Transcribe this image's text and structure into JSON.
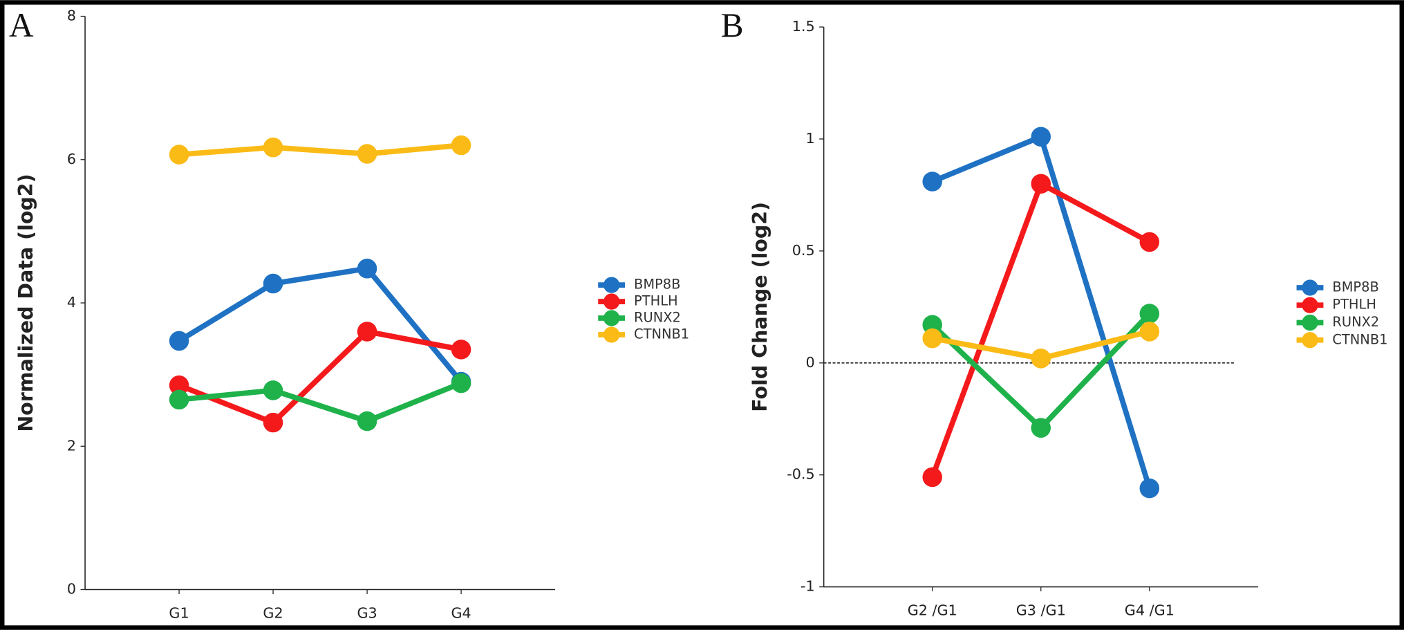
{
  "chart_data": [
    {
      "type": "line",
      "panel_label": "A",
      "y_label": "Normalized Data (log2)",
      "categories": [
        "G1",
        "G2",
        "G3",
        "G4"
      ],
      "ylim": [
        0,
        8
      ],
      "yticks": [
        0,
        2,
        4,
        6,
        8
      ],
      "series": [
        {
          "name": "BMP8B",
          "color": "#1f72c3",
          "values": [
            3.47,
            4.27,
            4.48,
            2.9
          ]
        },
        {
          "name": "PTHLH",
          "color": "#f41a1c",
          "values": [
            2.85,
            2.33,
            3.6,
            3.35
          ]
        },
        {
          "name": "RUNX2",
          "color": "#1fb24b",
          "values": [
            2.65,
            2.78,
            2.35,
            2.88
          ]
        },
        {
          "name": "CTNNB1",
          "color": "#fbbb16",
          "values": [
            6.07,
            6.17,
            6.08,
            6.2
          ]
        }
      ]
    },
    {
      "type": "line",
      "panel_label": "B",
      "y_label": "Fold Change (log2)",
      "categories": [
        "G2 /G1",
        "G3 /G1",
        "G4 /G1"
      ],
      "ylim": [
        -1,
        1.5
      ],
      "yticks": [
        -1,
        -0.5,
        0,
        0.5,
        1,
        1.5
      ],
      "zero_line": true,
      "series": [
        {
          "name": "BMP8B",
          "color": "#1f72c3",
          "values": [
            0.81,
            1.01,
            -0.56
          ]
        },
        {
          "name": "PTHLH",
          "color": "#f41a1c",
          "values": [
            -0.51,
            0.8,
            0.54
          ]
        },
        {
          "name": "RUNX2",
          "color": "#1fb24b",
          "values": [
            0.17,
            -0.29,
            0.22
          ]
        },
        {
          "name": "CTNNB1",
          "color": "#fbbb16",
          "values": [
            0.11,
            0.02,
            0.14
          ]
        }
      ]
    }
  ]
}
